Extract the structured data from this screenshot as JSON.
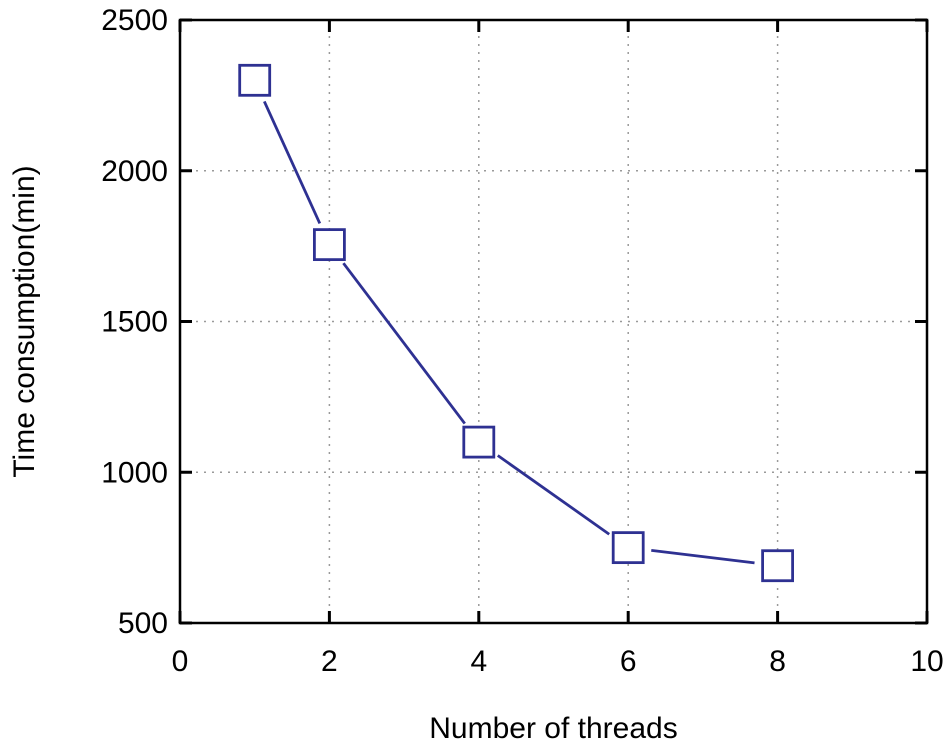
{
  "chart_data": {
    "type": "line",
    "xlabel": "Number of threads",
    "ylabel": "Time consumption(min)",
    "xlim": [
      0,
      10
    ],
    "ylim": [
      500,
      2500
    ],
    "xticks": [
      0,
      2,
      4,
      6,
      8,
      10
    ],
    "yticks": [
      500,
      1000,
      1500,
      2000,
      2500
    ],
    "grid": true,
    "colors": {
      "series": "#2e3192",
      "axis": "#000000",
      "grid": "#9a9a9a"
    },
    "series": [
      {
        "marker": "open-square",
        "x": [
          1,
          2,
          4,
          6,
          8
        ],
        "y": [
          2300,
          1755,
          1100,
          750,
          690
        ]
      }
    ]
  }
}
